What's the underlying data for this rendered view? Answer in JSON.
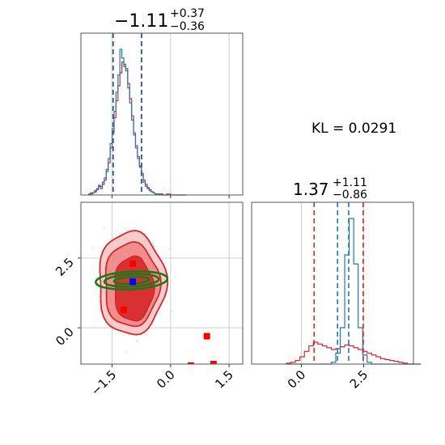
{
  "chart_data": [
    {
      "type": "histogram",
      "panel": "marginal-param1",
      "title": {
        "main": "−1.11",
        "sup": "+0.37",
        "sub": "−0.36"
      },
      "xlim": [
        -2.3,
        1.85
      ],
      "grid": true,
      "bins": {
        "start": -2.1,
        "width": 0.05
      },
      "series": [
        {
          "color": "#d62728",
          "counts": [
            1,
            2,
            2,
            4,
            5,
            8,
            6,
            10,
            14,
            22,
            30,
            44,
            58,
            72,
            88,
            102,
            114,
            124,
            120,
            118,
            104,
            90,
            74,
            58,
            46,
            36,
            27,
            20,
            14,
            10,
            7,
            5,
            3,
            2,
            1,
            1,
            1,
            1,
            0,
            0,
            1,
            1,
            0,
            0,
            0,
            0,
            0,
            0,
            0,
            0
          ]
        },
        {
          "color": "#1f77b4",
          "counts": [
            0,
            1,
            2,
            3,
            6,
            9,
            8,
            12,
            16,
            24,
            34,
            48,
            62,
            78,
            96,
            112,
            136,
            128,
            122,
            116,
            100,
            86,
            70,
            56,
            44,
            34,
            26,
            18,
            12,
            8,
            6,
            4,
            3,
            2,
            1,
            1,
            0,
            1,
            0,
            0,
            0,
            0,
            0,
            0,
            0,
            0,
            0,
            0,
            0,
            0
          ]
        }
      ],
      "quantile_lines": [
        {
          "color": "#d62728",
          "x": [
            -1.47,
            -0.74
          ]
        },
        {
          "color": "#1f77b4",
          "x": [
            -1.48,
            -0.75
          ]
        }
      ]
    },
    {
      "type": "histogram",
      "panel": "marginal-param2",
      "title": {
        "main": "1.37",
        "sup": "+1.11",
        "sub": "−0.86"
      },
      "xlim": [
        -2.0,
        4.5
      ],
      "grid": true,
      "bins": {
        "start": -0.6,
        "width": 0.18
      },
      "series": [
        {
          "color": "#d62728",
          "counts": [
            1,
            2,
            4,
            8,
            14,
            20,
            24,
            22,
            20,
            18,
            16,
            17,
            19,
            21,
            20,
            18,
            16,
            14,
            12,
            10,
            8,
            6,
            5,
            4,
            3,
            2,
            1,
            0,
            0,
            0
          ]
        },
        {
          "color": "#1f77b4",
          "counts": [
            0,
            0,
            0,
            0,
            0,
            0,
            0,
            0,
            0,
            0,
            2,
            12,
            40,
            120,
            160,
            110,
            40,
            10,
            2,
            0,
            0,
            0,
            0,
            0,
            0,
            0,
            0,
            0,
            0,
            0
          ]
        }
      ],
      "quantile_lines": [
        {
          "color": "#d62728",
          "x": [
            0.51,
            2.48
          ]
        },
        {
          "color": "#1f77b4",
          "x": [
            1.45,
            1.9
          ]
        }
      ]
    },
    {
      "type": "contour",
      "panel": "joint",
      "xlim": [
        -2.3,
        1.85
      ],
      "ylim": [
        -1.3,
        4.5
      ],
      "grid": true,
      "red_levels": [
        {
          "cx": -1.0,
          "cy": 1.6,
          "rx": 0.86,
          "ry": 1.85,
          "fill": "#f7c6c6",
          "opacity": 0.9
        },
        {
          "cx": -1.0,
          "cy": 1.55,
          "rx": 0.7,
          "ry": 1.5,
          "fill": "#ef8a8a",
          "opacity": 0.95
        },
        {
          "cx": -0.95,
          "cy": 1.4,
          "rx": 0.5,
          "ry": 1.15,
          "fill": "#d62728",
          "opacity": 0.9
        }
      ],
      "green_levels": [
        {
          "cx": -1.0,
          "cy": 1.7,
          "rx": 0.92,
          "ry": 0.32
        },
        {
          "cx": -1.0,
          "cy": 1.7,
          "rx": 0.7,
          "ry": 0.22
        },
        {
          "cx": -1.0,
          "cy": 1.7,
          "rx": 0.45,
          "ry": 0.12
        }
      ],
      "red_markers": [
        {
          "x": -0.97,
          "y": 2.3
        },
        {
          "x": -1.2,
          "y": 0.65
        },
        {
          "x": 0.52,
          "y": -1.35
        },
        {
          "x": 0.93,
          "y": -0.3
        },
        {
          "x": 1.1,
          "y": -1.3
        }
      ],
      "blue_marker": {
        "x": -0.97,
        "y": 1.65
      }
    }
  ],
  "axes": {
    "x_ticks_param1": [
      "−1.5",
      "0.0",
      "1.5"
    ],
    "y_ticks_param2": [
      "0.0",
      "2.5"
    ],
    "x_ticks_param2": [
      "0.0",
      "2.5"
    ],
    "x_tick_values_param1": [
      -1.5,
      0.0,
      1.5
    ],
    "y_tick_values_param2": [
      0.0,
      2.5
    ],
    "x_tick_values_param2": [
      0.0,
      2.5
    ]
  },
  "annotation": {
    "kl_text": "KL = 0.0291"
  }
}
